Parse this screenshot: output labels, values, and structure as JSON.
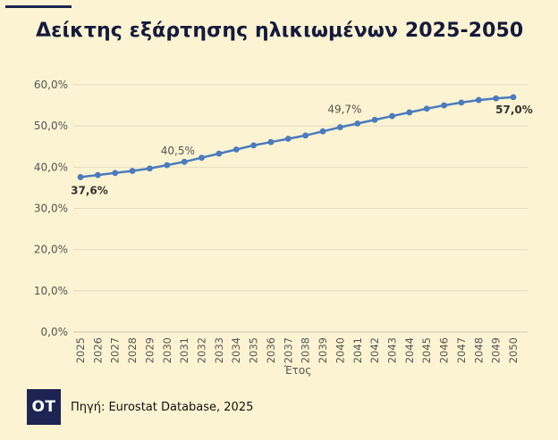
{
  "header": {
    "title": "Δείκτης εξάρτησης ηλικιωμένων 2025-2050"
  },
  "footer": {
    "logo_text": "ΟΤ",
    "source": "Πηγή: Eurostat Database, 2025"
  },
  "colors": {
    "background": "#fbf3d1",
    "line": "#4a7bbd",
    "grid": "#e4dcc0",
    "brand": "#1d2453"
  },
  "chart_data": {
    "type": "line",
    "title": "Δείκτης εξάρτησης ηλικιωμένων 2025-2050",
    "xlabel": "Έτος",
    "ylabel": "",
    "ylim": [
      0,
      60
    ],
    "y_ticks": [
      0,
      10,
      20,
      30,
      40,
      50,
      60
    ],
    "y_tick_labels": [
      "0,0%",
      "10,0%",
      "20,0%",
      "30,0%",
      "40,0%",
      "50,0%",
      "60,0%"
    ],
    "grid": true,
    "legend": false,
    "categories": [
      "2025",
      "2026",
      "2027",
      "2028",
      "2029",
      "2030",
      "2031",
      "2032",
      "2033",
      "2034",
      "2035",
      "2036",
      "2037",
      "2038",
      "2039",
      "2040",
      "2041",
      "2042",
      "2043",
      "2044",
      "2045",
      "2046",
      "2047",
      "2048",
      "2049",
      "2050"
    ],
    "values": [
      37.6,
      38.1,
      38.6,
      39.1,
      39.7,
      40.5,
      41.3,
      42.3,
      43.3,
      44.3,
      45.3,
      46.1,
      46.9,
      47.7,
      48.7,
      49.7,
      50.6,
      51.5,
      52.4,
      53.3,
      54.2,
      55.0,
      55.7,
      56.3,
      56.7,
      57.0
    ],
    "data_labels": [
      {
        "index": 0,
        "text": "37,6%",
        "bold": true
      },
      {
        "index": 5,
        "text": "40,5%",
        "bold": false
      },
      {
        "index": 15,
        "text": "49,7%",
        "bold": false
      },
      {
        "index": 25,
        "text": "57,0%",
        "bold": true
      }
    ]
  }
}
